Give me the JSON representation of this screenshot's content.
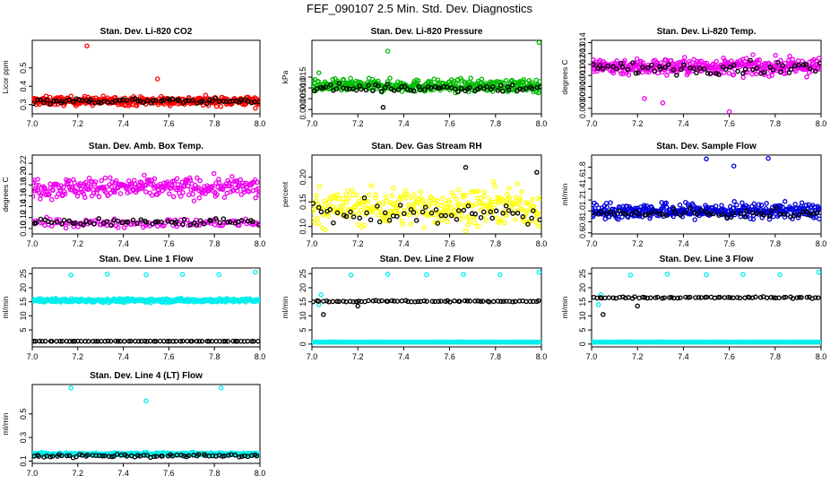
{
  "figure": {
    "title": "FEF_090107  2.5 Min. Std. Dev. Diagnostics"
  },
  "chart_data": [
    {
      "type": "scatter",
      "title": "Stan. Dev. Li-820 CO2",
      "xlabel": "",
      "ylabel": "Licor ppm",
      "xlim": [
        7.0,
        8.0
      ],
      "ylim": [
        0.25,
        0.65
      ],
      "xticks": [
        7.0,
        7.2,
        7.4,
        7.6,
        7.8,
        8.0
      ],
      "xtick_labels": [
        "7.0",
        "7.2",
        "7.4",
        "7.6",
        "7.8",
        "8.0"
      ],
      "yticks": [
        0.3,
        0.4,
        0.5
      ],
      "ytick_labels": [
        "0.3",
        "0.4",
        "0.5"
      ],
      "series": [
        {
          "name": "dense",
          "color": "#ff0000",
          "n": 380,
          "y_center": 0.32,
          "y_spread": 0.025,
          "outliers": [
            [
              7.24,
              0.62
            ],
            [
              7.55,
              0.44
            ],
            [
              7.98,
              0.28
            ]
          ]
        },
        {
          "name": "sparse",
          "color": "#000000",
          "n": 70,
          "y_center": 0.32,
          "y_spread": 0.015,
          "outliers": []
        }
      ]
    },
    {
      "type": "scatter",
      "title": "Stan. Dev. Li-820 Pressure",
      "xlabel": "",
      "ylabel": "kPa",
      "xlim": [
        7.0,
        8.0
      ],
      "ylim": [
        -0.002,
        0.032
      ],
      "xticks": [
        7.0,
        7.2,
        7.4,
        7.6,
        7.8,
        8.0
      ],
      "xtick_labels": [
        "7.0",
        "7.2",
        "7.4",
        "7.6",
        "7.8",
        "8.0"
      ],
      "yticks": [
        0.0,
        0.005,
        0.01,
        0.015
      ],
      "ytick_labels": [
        "0.000",
        "0.005",
        "0.010",
        "0.015"
      ],
      "series": [
        {
          "name": "dense",
          "color": "#00bb00",
          "n": 380,
          "y_center": 0.011,
          "y_spread": 0.003,
          "outliers": [
            [
              7.33,
              0.027
            ],
            [
              7.99,
              0.031
            ],
            [
              7.03,
              0.017
            ]
          ]
        },
        {
          "name": "sparse",
          "color": "#000000",
          "n": 70,
          "y_center": 0.01,
          "y_spread": 0.002,
          "outliers": [
            [
              7.31,
              0.001
            ]
          ]
        }
      ]
    },
    {
      "type": "scatter",
      "title": "Stan. Dev. Li-820 Temp.",
      "xlabel": "",
      "ylabel": "degrees C",
      "xlim": [
        7.0,
        8.0
      ],
      "ylim": [
        0.0075,
        0.0142
      ],
      "xticks": [
        7.0,
        7.2,
        7.4,
        7.6,
        7.8,
        8.0
      ],
      "xtick_labels": [
        "7.0",
        "7.2",
        "7.4",
        "7.6",
        "7.8",
        "8.0"
      ],
      "yticks": [
        0.008,
        0.009,
        0.01,
        0.011,
        0.012,
        0.013,
        0.014
      ],
      "ytick_labels": [
        "0.008",
        "0.009",
        "0.010",
        "0.011",
        "0.012",
        "0.013",
        "0.014"
      ],
      "series": [
        {
          "name": "dense",
          "color": "#ee00ee",
          "n": 380,
          "y_center": 0.0118,
          "y_spread": 0.0008,
          "outliers": [
            [
              7.6,
              0.0077
            ],
            [
              7.31,
              0.0085
            ],
            [
              7.23,
              0.0089
            ]
          ]
        },
        {
          "name": "sparse",
          "color": "#000000",
          "n": 60,
          "y_center": 0.0117,
          "y_spread": 0.0006,
          "outliers": []
        }
      ]
    },
    {
      "type": "scatter",
      "title": "Stan. Dev. Amb. Box Temp.",
      "xlabel": "",
      "ylabel": "degrees C",
      "xlim": [
        7.0,
        8.0
      ],
      "ylim": [
        0.09,
        0.235
      ],
      "xticks": [
        7.0,
        7.2,
        7.4,
        7.6,
        7.8,
        8.0
      ],
      "xtick_labels": [
        "7.0",
        "7.2",
        "7.4",
        "7.6",
        "7.8",
        "8.0"
      ],
      "yticks": [
        0.1,
        0.12,
        0.14,
        0.16,
        0.18,
        0.2,
        0.22
      ],
      "ytick_labels": [
        "0.10",
        "0.12",
        "0.14",
        "0.16",
        "0.18",
        "0.20",
        "0.22"
      ],
      "series": [
        {
          "name": "dense-upper",
          "color": "#ee00ee",
          "n": 300,
          "y_center": 0.175,
          "y_spread": 0.02,
          "outliers": []
        },
        {
          "name": "dense-lower",
          "color": "#ee00ee",
          "n": 120,
          "y_center": 0.11,
          "y_spread": 0.008,
          "outliers": []
        },
        {
          "name": "sparse",
          "color": "#000000",
          "n": 60,
          "y_center": 0.112,
          "y_spread": 0.008,
          "outliers": []
        }
      ]
    },
    {
      "type": "scatter",
      "title": "Stan. Dev. Gas Stream RH",
      "xlabel": "",
      "ylabel": "percent",
      "xlim": [
        7.0,
        8.0
      ],
      "ylim": [
        0.085,
        0.245
      ],
      "xticks": [
        7.0,
        7.2,
        7.4,
        7.6,
        7.8,
        8.0
      ],
      "xtick_labels": [
        "7.0",
        "7.2",
        "7.4",
        "7.6",
        "7.8",
        "8.0"
      ],
      "yticks": [
        0.1,
        0.15,
        0.2
      ],
      "ytick_labels": [
        "0.10",
        "0.15",
        "0.20"
      ],
      "series": [
        {
          "name": "dense",
          "color": "#ffff00",
          "n": 320,
          "y_center": 0.14,
          "y_spread": 0.04,
          "outliers": []
        },
        {
          "name": "sparse",
          "color": "#000000",
          "n": 55,
          "y_center": 0.125,
          "y_spread": 0.025,
          "outliers": [
            [
              7.67,
              0.22
            ],
            [
              7.98,
              0.21
            ]
          ]
        }
      ]
    },
    {
      "type": "scatter",
      "title": "Stan. Dev. Sample Flow",
      "xlabel": "",
      "ylabel": "ml/min",
      "xlim": [
        7.0,
        8.0
      ],
      "ylim": [
        0.58,
        2.02
      ],
      "xticks": [
        7.0,
        7.2,
        7.4,
        7.6,
        7.8,
        8.0
      ],
      "xtick_labels": [
        "7.0",
        "7.2",
        "7.4",
        "7.6",
        "7.8",
        "8.0"
      ],
      "yticks": [
        0.6,
        0.8,
        1.0,
        1.2,
        1.4,
        1.6,
        1.8
      ],
      "ytick_labels": [
        "0.6",
        "0.8",
        "1.0",
        "1.2",
        "1.4",
        "1.6",
        "1.8"
      ],
      "series": [
        {
          "name": "dense",
          "color": "#0000dd",
          "n": 380,
          "y_center": 1.0,
          "y_spread": 0.15,
          "outliers": [
            [
              7.5,
              1.95
            ],
            [
              7.77,
              1.96
            ],
            [
              7.62,
              1.82
            ]
          ]
        },
        {
          "name": "sparse",
          "color": "#000000",
          "n": 55,
          "y_center": 0.95,
          "y_spread": 0.08,
          "outliers": []
        }
      ]
    },
    {
      "type": "scatter",
      "title": "Stan. Dev. Line 1 Flow",
      "xlabel": "",
      "ylabel": "ml/min",
      "xlim": [
        7.0,
        8.0
      ],
      "ylim": [
        -1,
        27
      ],
      "xticks": [
        7.0,
        7.2,
        7.4,
        7.6,
        7.8,
        8.0
      ],
      "xtick_labels": [
        "7.0",
        "7.2",
        "7.4",
        "7.6",
        "7.8",
        "8.0"
      ],
      "yticks": [
        5,
        10,
        15,
        20,
        25
      ],
      "ytick_labels": [
        "5",
        "10",
        "15",
        "20",
        "25"
      ],
      "series": [
        {
          "name": "dense",
          "color": "#00eeee",
          "n": 380,
          "y_center": 15.5,
          "y_spread": 0.7,
          "outliers": [
            [
              7.17,
              24.5
            ],
            [
              7.33,
              24.8
            ],
            [
              7.5,
              24.6
            ],
            [
              7.66,
              24.7
            ],
            [
              7.82,
              24.6
            ],
            [
              7.98,
              25.5
            ]
          ]
        },
        {
          "name": "sparse",
          "color": "#000000",
          "n": 70,
          "y_center": 1.0,
          "y_spread": 0.05,
          "outliers": []
        }
      ]
    },
    {
      "type": "scatter",
      "title": "Stan. Dev. Line 2 Flow",
      "xlabel": "",
      "ylabel": "ml/min",
      "xlim": [
        7.0,
        8.0
      ],
      "ylim": [
        -1,
        27
      ],
      "xticks": [
        7.0,
        7.2,
        7.4,
        7.6,
        7.8,
        8.0
      ],
      "xtick_labels": [
        "7.0",
        "7.2",
        "7.4",
        "7.6",
        "7.8",
        "8.0"
      ],
      "yticks": [
        0,
        5,
        10,
        15,
        20,
        25
      ],
      "ytick_labels": [
        "0",
        "5",
        "10",
        "15",
        "20",
        "25"
      ],
      "series": [
        {
          "name": "dense",
          "color": "#00eeee",
          "n": 380,
          "y_center": 0.7,
          "y_spread": 0.05,
          "outliers": [
            [
              7.17,
              24.5
            ],
            [
              7.33,
              24.8
            ],
            [
              7.5,
              24.6
            ],
            [
              7.66,
              24.7
            ],
            [
              7.82,
              24.6
            ],
            [
              7.99,
              25.5
            ],
            [
              7.03,
              14.0
            ],
            [
              7.04,
              17.5
            ]
          ]
        },
        {
          "name": "sparse",
          "color": "#000000",
          "n": 70,
          "y_center": 15.2,
          "y_spread": 0.3,
          "outliers": [
            [
              7.05,
              10.5
            ],
            [
              7.2,
              13.5
            ]
          ]
        }
      ]
    },
    {
      "type": "scatter",
      "title": "Stan. Dev. Line 3 Flow",
      "xlabel": "",
      "ylabel": "ml/min",
      "xlim": [
        7.0,
        8.0
      ],
      "ylim": [
        -1,
        27
      ],
      "xticks": [
        7.0,
        7.2,
        7.4,
        7.6,
        7.8,
        8.0
      ],
      "xtick_labels": [
        "7.0",
        "7.2",
        "7.4",
        "7.6",
        "7.8",
        "8.0"
      ],
      "yticks": [
        0,
        5,
        10,
        15,
        20,
        25
      ],
      "ytick_labels": [
        "0",
        "5",
        "10",
        "15",
        "20",
        "25"
      ],
      "series": [
        {
          "name": "dense",
          "color": "#00eeee",
          "n": 380,
          "y_center": 0.7,
          "y_spread": 0.05,
          "outliers": [
            [
              7.17,
              24.5
            ],
            [
              7.33,
              24.8
            ],
            [
              7.5,
              24.6
            ],
            [
              7.66,
              24.7
            ],
            [
              7.82,
              24.6
            ],
            [
              7.99,
              25.5
            ],
            [
              7.03,
              14.0
            ],
            [
              7.04,
              17.5
            ]
          ]
        },
        {
          "name": "sparse",
          "color": "#000000",
          "n": 70,
          "y_center": 16.5,
          "y_spread": 0.3,
          "outliers": [
            [
              7.05,
              10.5
            ],
            [
              7.2,
              13.5
            ]
          ]
        }
      ]
    },
    {
      "type": "scatter",
      "title": "Stan. Dev. Line 4 (LT) Flow",
      "xlabel": "",
      "ylabel": "ml/min",
      "xlim": [
        7.0,
        8.0
      ],
      "ylim": [
        0.08,
        0.75
      ],
      "xticks": [
        7.0,
        7.2,
        7.4,
        7.6,
        7.8,
        8.0
      ],
      "xtick_labels": [
        "7.0",
        "7.2",
        "7.4",
        "7.6",
        "7.8",
        "8.0"
      ],
      "yticks": [
        0.1,
        0.3,
        0.5
      ],
      "ytick_labels": [
        "0.1",
        "0.3",
        "0.5"
      ],
      "series": [
        {
          "name": "dense",
          "color": "#00eeee",
          "n": 380,
          "y_center": 0.16,
          "y_spread": 0.012,
          "outliers": [
            [
              7.17,
              0.72
            ],
            [
              7.5,
              0.61
            ],
            [
              7.83,
              0.72
            ]
          ]
        },
        {
          "name": "sparse",
          "color": "#000000",
          "n": 70,
          "y_center": 0.145,
          "y_spread": 0.015,
          "outliers": []
        }
      ]
    }
  ]
}
